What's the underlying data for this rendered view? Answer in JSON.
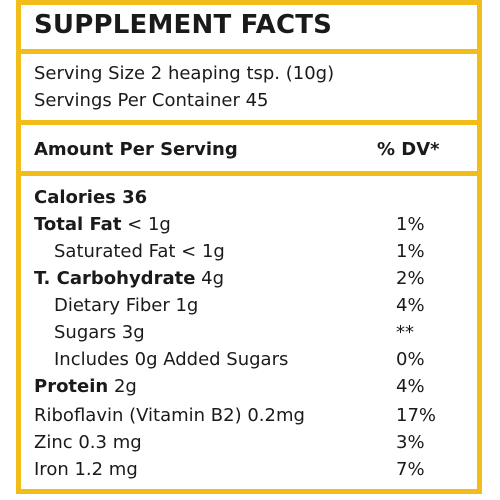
{
  "title": "SUPPLEMENT FACTS",
  "serving_size": "Serving Size 2 heaping tsp. (10g)",
  "servings_per_container": "Servings Per Container 45",
  "header": {
    "amount_label": "Amount Per Serving",
    "dv_label": "% DV*"
  },
  "calories": "Calories 36",
  "rows": [
    {
      "bold": "Total Fat",
      "rest": " <  1g",
      "dv": "1%"
    },
    {
      "bold": "",
      "rest": "Saturated Fat <  1g",
      "dv": "1%"
    },
    {
      "bold": "T. Carbohydrate",
      "rest": " 4g",
      "dv": "2%"
    },
    {
      "bold": "",
      "rest": "Dietary Fiber 1g",
      "dv": "4%"
    },
    {
      "bold": "",
      "rest": "Sugars 3g",
      "dv": "**"
    },
    {
      "bold": "",
      "rest": "Includes 0g Added Sugars",
      "dv": "0%"
    },
    {
      "bold": "Protein",
      "rest": " 2g",
      "dv": "4%"
    },
    {
      "bold": "",
      "rest": "Riboflavin (Vitamin B2) 0.2mg",
      "dv": "17%"
    },
    {
      "bold": "",
      "rest": "Zinc 0.3 mg",
      "dv": "3%"
    },
    {
      "bold": "",
      "rest": "Iron 1.2 mg",
      "dv": "7%"
    }
  ],
  "colors": {
    "border": "#f2bc1b",
    "text": "#1a1a1a"
  }
}
